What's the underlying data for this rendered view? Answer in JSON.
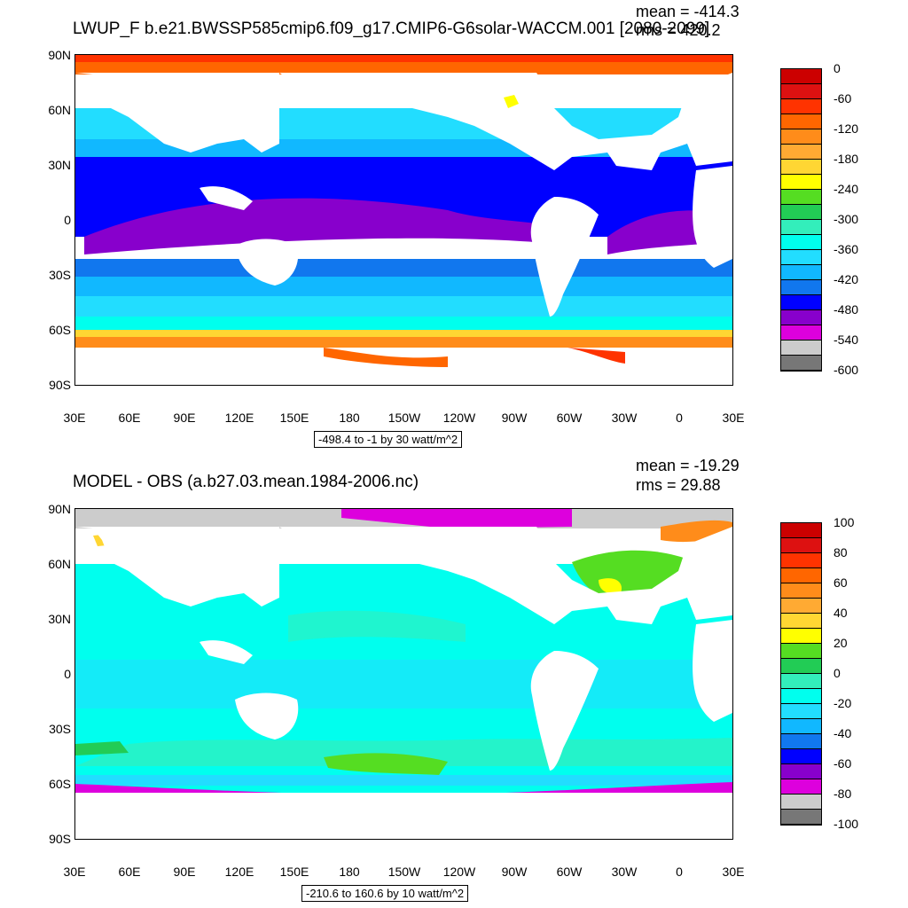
{
  "panel1": {
    "title": "LWUP_F b.e21.BWSSP585cmip6.f09_g17.CMIP6-G6solar-WACCM.001 [2080-2099]",
    "mean": "mean = -414.3",
    "rms": "rms = 420.2",
    "range_note": "-498.4 to -1 by 30 watt/m^2",
    "colorbar_labels": [
      "0",
      "-60",
      "-120",
      "-180",
      "-240",
      "-300",
      "-360",
      "-420",
      "-480",
      "-540",
      "-600"
    ],
    "colorbar_colors": [
      "#cc0000",
      "#dd1111",
      "#ff3300",
      "#ff6600",
      "#ff8c1a",
      "#ffaa33",
      "#ffd633",
      "#ffff00",
      "#55dd22",
      "#22cc55",
      "#33eebb",
      "#00ffee",
      "#22ddff",
      "#11b8ff",
      "#1177ee",
      "#0000ff",
      "#8800cc",
      "#dd00dd",
      "#cccccc",
      "#777777"
    ]
  },
  "panel2": {
    "title": "MODEL - OBS (a.b27.03.mean.1984-2006.nc)",
    "mean": "mean = -19.29",
    "rms": "rms = 29.88",
    "range_note": "-210.6 to 160.6 by 10 watt/m^2",
    "colorbar_labels": [
      "100",
      "80",
      "60",
      "40",
      "20",
      "0",
      "-20",
      "-40",
      "-60",
      "-80",
      "-100"
    ],
    "colorbar_colors": [
      "#cc0000",
      "#dd1111",
      "#ff3300",
      "#ff6600",
      "#ff8c1a",
      "#ffaa33",
      "#ffd633",
      "#ffff00",
      "#55dd22",
      "#22cc55",
      "#33eebb",
      "#00ffee",
      "#22ddff",
      "#11b8ff",
      "#1177ee",
      "#0000ff",
      "#8800cc",
      "#dd00dd",
      "#cccccc",
      "#777777"
    ]
  },
  "axes": {
    "lat_labels": [
      "90N",
      "60N",
      "30N",
      "0",
      "30S",
      "60S",
      "90S"
    ],
    "lon_labels": [
      "30E",
      "60E",
      "90E",
      "120E",
      "150E",
      "180",
      "150W",
      "120W",
      "90W",
      "60W",
      "30W",
      "0",
      "30E"
    ]
  }
}
